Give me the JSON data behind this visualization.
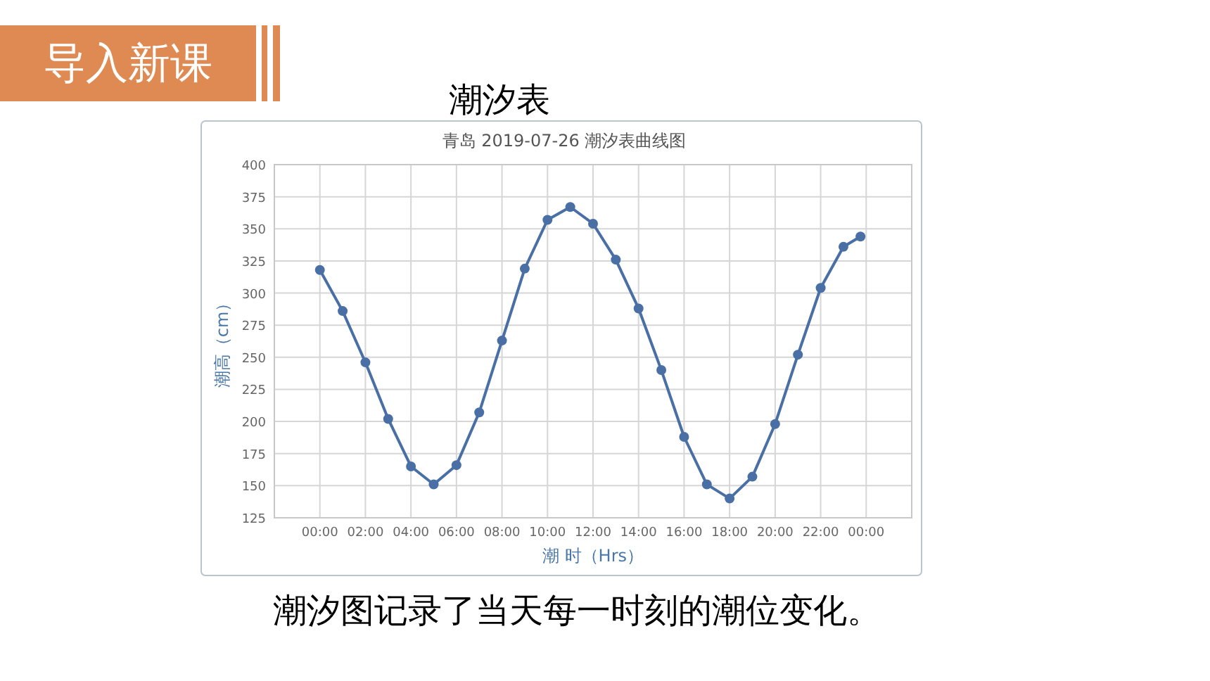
{
  "chart_data": {
    "type": "line",
    "title": "潮汐表",
    "subtitle": "青岛 2019-07-26 潮汐表曲线图",
    "xlabel": "潮 时（Hrs）",
    "ylabel": "潮高（cm）",
    "annotations": [
      "导入新课",
      "潮汐图记录了当天每一时刻的潮位变化。"
    ],
    "x": [
      0,
      1,
      2,
      3,
      4,
      5,
      6,
      7,
      8,
      9,
      10,
      11,
      12,
      13,
      14,
      15,
      16,
      17,
      18,
      19,
      20,
      21,
      22,
      23,
      23.75
    ],
    "series": [
      {
        "color": "#4a6fa5",
        "values": [
          318,
          286,
          246,
          202,
          165,
          151,
          166,
          207,
          263,
          319,
          357,
          367,
          354,
          326,
          288,
          240,
          188,
          151,
          140,
          157,
          198,
          252,
          304,
          336,
          344
        ]
      }
    ],
    "xlim": [
      -2,
      26
    ],
    "xticks": [
      {
        "value": 0,
        "label": "00:00"
      },
      {
        "value": 2,
        "label": "02:00"
      },
      {
        "value": 4,
        "label": "04:00"
      },
      {
        "value": 6,
        "label": "06:00"
      },
      {
        "value": 8,
        "label": "08:00"
      },
      {
        "value": 10,
        "label": "10:00"
      },
      {
        "value": 12,
        "label": "12:00"
      },
      {
        "value": 14,
        "label": "14:00"
      },
      {
        "value": 16,
        "label": "16:00"
      },
      {
        "value": 18,
        "label": "18:00"
      },
      {
        "value": 20,
        "label": "20:00"
      },
      {
        "value": 22,
        "label": "22:00"
      },
      {
        "value": 24,
        "label": "00:00"
      }
    ],
    "ylim": [
      125,
      400
    ],
    "yticks": [
      125,
      150,
      175,
      200,
      225,
      250,
      275,
      300,
      325,
      350,
      375,
      400
    ],
    "grid": true,
    "marker": "circle",
    "line_style": "solid"
  }
}
